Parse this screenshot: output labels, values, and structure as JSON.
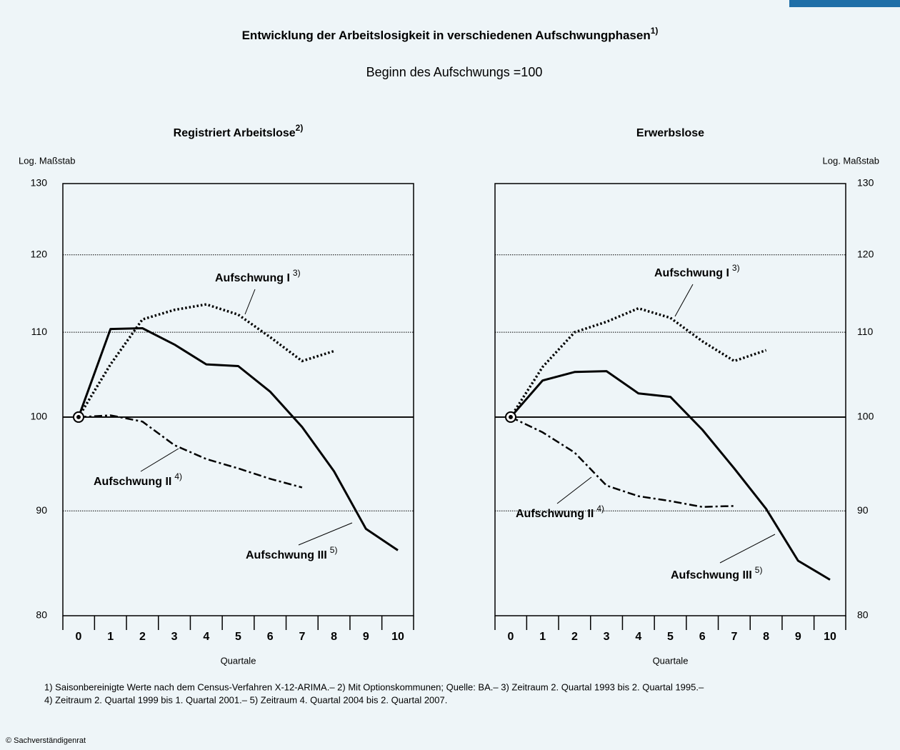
{
  "title": "Entwicklung der Arbeitslosigkeit in verschiedenen Aufschwungphasen",
  "title_note": "1)",
  "subtitle": "Beginn des Aufschwungs  =100",
  "footnotes": [
    "1) Saisonbereinigte Werte nach dem Census-Verfahren X-12-ARIMA.– 2) Mit Optionskommunen; Quelle: BA.– 3) Zeitraum 2. Quartal 1993 bis 2. Quartal 1995.–",
    "4) Zeitraum 2. Quartal 1999 bis 1. Quartal 2001.– 5) Zeitraum 4. Quartal  2004 bis 2. Quartal  2007."
  ],
  "copyright": "© Sachverständigenrat",
  "chart_data": [
    {
      "type": "line",
      "title": "Registriert Arbeitslose",
      "title_note": "2)",
      "y_axis_label": "Log. Maßstab",
      "x_label": "Quartale",
      "yaxis_side": "left",
      "yscale": "log",
      "ylim": [
        80,
        130
      ],
      "yticks": [
        80,
        90,
        100,
        110,
        120,
        130
      ],
      "grid": true,
      "reference_line": 100,
      "categories": [
        "0",
        "1",
        "2",
        "3",
        "4",
        "5",
        "6",
        "7",
        "8",
        "9",
        "10"
      ],
      "series": [
        {
          "name": "Aufschwung I",
          "note": "3)",
          "style": "dotted",
          "color": "#000000",
          "values": [
            100,
            106.1,
            111.6,
            112.8,
            113.5,
            112.2,
            109.4,
            106.5,
            107.7,
            null,
            null
          ]
        },
        {
          "name": "Aufschwung II",
          "note": "4)",
          "style": "dashdot",
          "color": "#000000",
          "values": [
            100,
            100.2,
            99.5,
            96.9,
            95.4,
            94.4,
            93.3,
            92.4,
            null,
            null,
            null
          ]
        },
        {
          "name": "Aufschwung III",
          "note": "5)",
          "style": "solid",
          "color": "#000000",
          "values": [
            100,
            110.4,
            110.5,
            108.5,
            106.1,
            105.9,
            102.9,
            98.9,
            94.1,
            88.2,
            86.1
          ]
        }
      ]
    },
    {
      "type": "line",
      "title": "Erwerbslose",
      "y_axis_label": "Log. Maßstab",
      "x_label": "Quartale",
      "yaxis_side": "right",
      "yscale": "log",
      "ylim": [
        80,
        130
      ],
      "yticks": [
        80,
        90,
        100,
        110,
        120,
        130
      ],
      "grid": true,
      "reference_line": 100,
      "categories": [
        "0",
        "1",
        "2",
        "3",
        "4",
        "5",
        "6",
        "7",
        "8",
        "9",
        "10"
      ],
      "series": [
        {
          "name": "Aufschwung I",
          "note": "3)",
          "style": "dotted",
          "color": "#000000",
          "values": [
            100,
            105.8,
            110,
            111.3,
            113,
            111.8,
            108.9,
            106.5,
            107.8,
            null,
            null
          ]
        },
        {
          "name": "Aufschwung II",
          "note": "4)",
          "style": "dashdot",
          "color": "#000000",
          "values": [
            100,
            98.3,
            96.1,
            92.6,
            91.5,
            91.0,
            90.4,
            90.5,
            null,
            null,
            null
          ]
        },
        {
          "name": "Aufschwung III",
          "note": "5)",
          "style": "solid",
          "color": "#000000",
          "values": [
            100,
            104.2,
            105.2,
            105.3,
            102.7,
            102.3,
            98.6,
            94.4,
            90.2,
            85.1,
            83.3
          ]
        }
      ]
    }
  ]
}
